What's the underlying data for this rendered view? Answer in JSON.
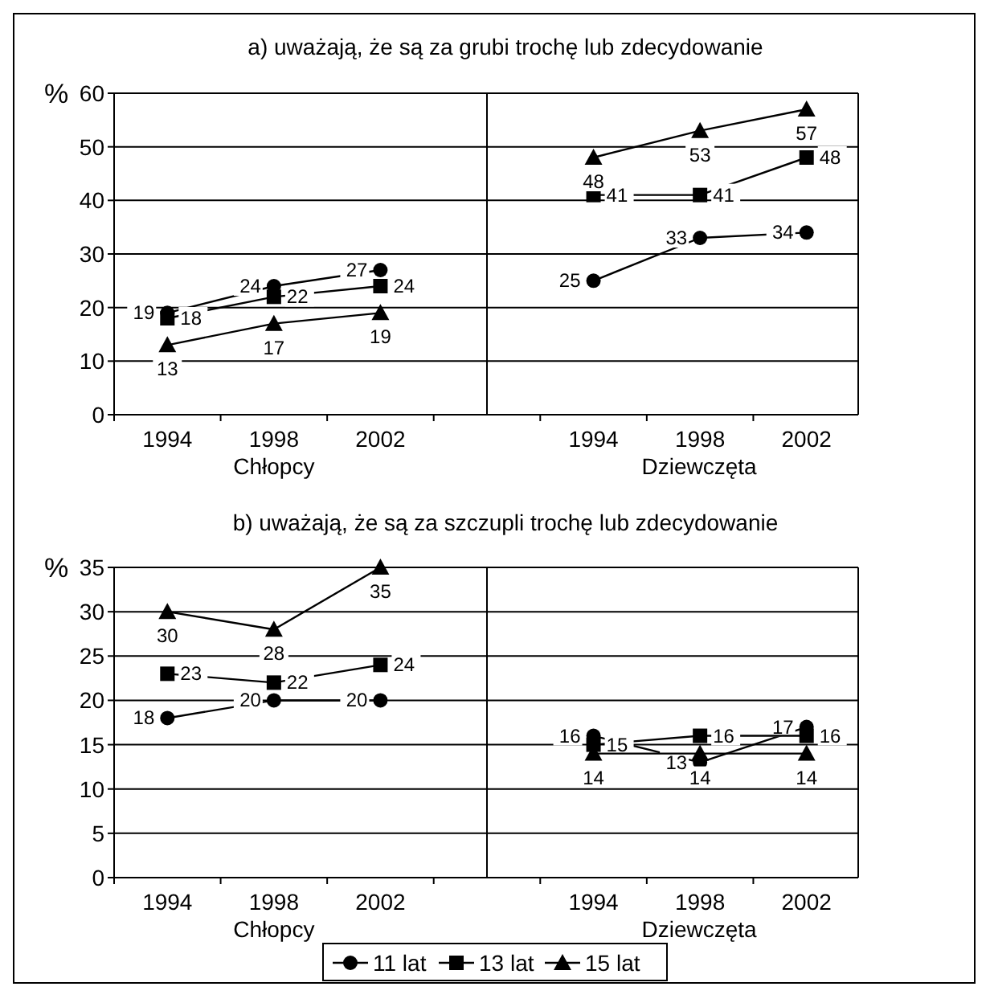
{
  "chart_data": [
    {
      "type": "line",
      "title": "a) uważają, że są za grubi trochę lub zdecydowanie",
      "ylabel": "%",
      "xlabel": "Chłopcy",
      "categories": [
        "1994",
        "1998",
        "2002"
      ],
      "ylim": [
        0,
        60
      ],
      "yticks": [
        0,
        10,
        20,
        30,
        40,
        50,
        60
      ],
      "grid": "y",
      "data_labels": true,
      "series": [
        {
          "color": "#000000",
          "marker": "circle",
          "values": [
            19,
            24,
            27
          ]
        },
        {
          "color": "#000000",
          "marker": "square",
          "values": [
            18,
            22,
            24
          ]
        },
        {
          "color": "#000000",
          "marker": "triangle",
          "values": [
            13,
            17,
            19
          ]
        }
      ]
    },
    {
      "type": "line",
      "xlabel": "Dziewczęta",
      "categories": [
        "1994",
        "1998",
        "2002"
      ],
      "ylim": [
        0,
        60
      ],
      "yticks": [
        0,
        10,
        20,
        30,
        40,
        50,
        60
      ],
      "grid": "y",
      "data_labels": true,
      "tick_labels": "x",
      "series": [
        {
          "color": "#000000",
          "marker": "circle",
          "values": [
            25,
            33,
            34
          ]
        },
        {
          "color": "#000000",
          "marker": "square",
          "values": [
            41,
            41,
            48
          ]
        },
        {
          "color": "#000000",
          "marker": "triangle",
          "values": [
            48,
            53,
            57
          ]
        }
      ]
    },
    {
      "type": "line",
      "title": "b) uważają, że są za szczupli trochę lub zdecydowanie",
      "ylabel": "%",
      "xlabel": "Chłopcy",
      "categories": [
        "1994",
        "1998",
        "2002"
      ],
      "ylim": [
        0,
        35
      ],
      "yticks": [
        0,
        5,
        10,
        15,
        20,
        25,
        30,
        35
      ],
      "grid": "y",
      "data_labels": true,
      "series": [
        {
          "color": "#000000",
          "marker": "circle",
          "values": [
            18,
            20,
            20
          ]
        },
        {
          "color": "#000000",
          "marker": "square",
          "values": [
            23,
            22,
            24
          ]
        },
        {
          "color": "#000000",
          "marker": "triangle",
          "values": [
            30,
            28,
            35
          ]
        }
      ]
    },
    {
      "type": "line",
      "xlabel": "Dziewczęta",
      "categories": [
        "1994",
        "1998",
        "2002"
      ],
      "ylim": [
        0,
        35
      ],
      "yticks": [
        0,
        5,
        10,
        15,
        20,
        25,
        30,
        35
      ],
      "grid": "y",
      "data_labels": true,
      "tick_labels": "x",
      "legend": "bottom",
      "series": [
        {
          "name": "11 lat",
          "color": "#000000",
          "marker": "circle",
          "values": [
            16,
            13,
            17
          ]
        },
        {
          "name": "13 lat",
          "color": "#000000",
          "marker": "square",
          "values": [
            15,
            16,
            16
          ]
        },
        {
          "name": "15 lat",
          "color": "#000000",
          "marker": "triangle",
          "values": [
            14,
            14,
            14
          ]
        }
      ]
    }
  ]
}
